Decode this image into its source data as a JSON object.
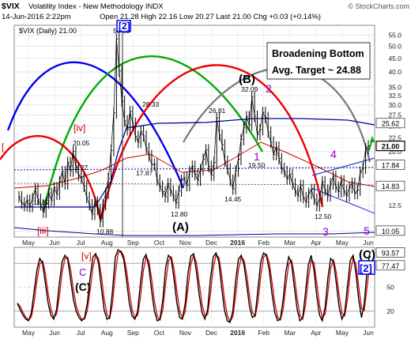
{
  "header": {
    "symbol": "$VIX",
    "name": "Volatility Index - New Methodology INDX",
    "credit": "© StockCharts.com",
    "date": "14-Jun-2016 2:22pm",
    "stats": "Open 21.28  High 22.16  Low 20.27  Last 21.00  Chg +0.03 (+0.14%)",
    "legend": "$VIX (Daily) 21.00"
  },
  "colors": {
    "price": "#000000",
    "up_arrow": "#00aa00",
    "cycle_blue": "#0000ee",
    "cycle_green": "#00aa00",
    "cycle_red": "#ee0000",
    "cycle_gray": "#777777",
    "wave_purple": "#9900cc",
    "wave_red": "#cc0000",
    "ma_blue": "#000099",
    "ma_red": "#cc0000",
    "channel": "#3344cc",
    "stoch_red": "#dd0000"
  },
  "annotations": {
    "title_box": [
      "Broadening Bottom",
      "Avg. Target ~ 24.88"
    ],
    "wave_B": "(B)",
    "wave_A": "(A)",
    "wave_C_top": "(C)",
    "wave_C_low": "(C)",
    "wave_2_box": "2",
    "purple_2": "2",
    "purple_1": "1",
    "purple_3": "3",
    "purple_4": "4",
    "purple_5": "5",
    "purple_C": "C",
    "red_iv": "[iv]",
    "red_iii": "[iii]",
    "red_v": "[v]",
    "marker_2": "[2]"
  },
  "price_labels": {
    "p1": "11.82",
    "p2": "20.05",
    "p3": "16.27",
    "p4": "10.88",
    "p5": "53.29",
    "p6": "28.33",
    "p7": "17.87",
    "p8": "12.80",
    "p9": "26.81",
    "p10": "14.45",
    "p11": "32.09",
    "p12": "19.50",
    "p13": "12.50"
  },
  "right_badges": [
    {
      "label": "25.62",
      "value": 25.62,
      "style": "white"
    },
    {
      "label": "21.00",
      "value": 21.0,
      "style": "bold"
    },
    {
      "label": "17.84",
      "value": 17.84,
      "style": "white"
    },
    {
      "label": "14.83",
      "value": 14.83,
      "style": "white"
    },
    {
      "label": "10.05",
      "value": 10.05,
      "style": "white"
    }
  ],
  "osc_badges": [
    {
      "label": "93.57"
    },
    {
      "label": "77.47"
    }
  ],
  "chart_data": [
    {
      "type": "line",
      "title": "$VIX (Daily) 21.00",
      "xlabel": "",
      "ylabel": "",
      "log_scale": true,
      "ylim": [
        9.5,
        60
      ],
      "yticks": [
        10.0,
        12.5,
        15.0,
        17.5,
        20.0,
        22.5,
        25.0,
        27.5,
        30.0,
        32.5,
        35.0,
        40.0,
        45.0,
        50.0,
        55.0
      ],
      "ytick_labels": [
        "10.0",
        "12.5",
        "15.0",
        "17.5",
        "20.0",
        "22.5",
        "25.0",
        "27.5",
        "30.0",
        "32.5",
        "35.0",
        "40.0",
        "45.0",
        "50.0",
        "55.0"
      ],
      "xtick_labels": [
        "May",
        "Jun",
        "Jul",
        "Aug",
        "Sep",
        "Oct",
        "Nov",
        "Dec",
        "2016",
        "Feb",
        "Mar",
        "Apr",
        "May",
        "Jun"
      ],
      "grid": true,
      "series": [
        {
          "values": [
            13.5,
            12.8,
            12.5,
            13.1,
            12.4,
            13.3,
            14.5,
            13.2,
            12.6,
            11.82,
            12.8,
            13.9,
            13.1,
            14.6,
            13.8,
            15.4,
            16.8,
            15.1,
            18.2,
            16.9,
            20.05,
            17.4,
            16.27,
            15.9,
            14.8,
            13.4,
            12.6,
            11.6,
            12.9,
            12.1,
            10.88,
            12.6,
            13.9,
            15.8,
            20.2,
            28.0,
            53.29,
            40.4,
            31.0,
            26.1,
            24.2,
            28.33,
            25.6,
            22.8,
            21.7,
            23.8,
            22.9,
            20.6,
            19.3,
            17.87,
            17.9,
            15.6,
            14.8,
            14.1,
            13.5,
            15.1,
            14.2,
            13.6,
            12.8,
            14.2,
            15.6,
            15.9,
            14.9,
            16.8,
            17.6,
            16.4,
            15.6,
            17.1,
            18.7,
            20.3,
            17.6,
            16.3,
            18.2,
            26.81,
            23.1,
            21.2,
            18.4,
            17.2,
            15.6,
            14.45,
            16.9,
            18.7,
            22.2,
            24.6,
            27.1,
            25.2,
            32.09,
            27.2,
            23.2,
            24.2,
            28.1,
            26.9,
            23.7,
            21.7,
            19.5,
            20.8,
            18.8,
            17.3,
            16.8,
            15.8,
            16.4,
            15.1,
            14.2,
            13.6,
            14.9,
            13.4,
            12.9,
            13.9,
            14.4,
            13.2,
            12.5,
            13.3,
            15.4,
            14.3,
            13.6,
            15.1,
            16.1,
            14.7,
            14.1,
            15.5,
            14.2,
            13.6,
            14.6,
            15.2,
            13.9,
            14.3,
            16.7,
            17.3,
            20.5,
            21.0
          ]
        }
      ]
    },
    {
      "type": "line",
      "title": "",
      "xlabel": "",
      "ylabel": "",
      "ylim": [
        0,
        100
      ],
      "yticks": [
        20,
        50,
        80
      ],
      "ytick_labels": [
        "20",
        "50",
        "80"
      ],
      "xtick_labels": [
        "May",
        "Jun",
        "Jul",
        "Aug",
        "Sep",
        "Oct",
        "Nov",
        "Dec",
        "2016",
        "Feb",
        "Mar",
        "Apr",
        "May",
        "Jun"
      ],
      "grid": true,
      "series": [
        {
          "values": [
            30,
            22,
            15,
            10,
            8,
            18,
            45,
            72,
            86,
            80,
            55,
            30,
            15,
            10,
            22,
            55,
            82,
            90,
            85,
            60,
            35,
            20,
            12,
            8,
            12,
            30,
            62,
            88,
            92,
            80,
            50,
            22,
            10,
            12,
            45,
            88,
            97,
            94,
            85,
            60,
            30,
            14,
            10,
            20,
            55,
            85,
            91,
            75,
            45,
            20,
            8,
            10,
            35,
            75,
            90,
            86,
            60,
            30,
            12,
            10,
            30,
            68,
            89,
            92,
            70,
            40,
            18,
            10,
            22,
            60,
            88,
            93,
            82,
            50,
            22,
            8,
            6,
            20,
            58,
            85,
            90,
            78,
            52,
            25,
            12,
            15,
            48,
            82,
            93,
            90,
            72,
            42,
            18,
            8,
            10,
            35,
            70,
            88,
            80,
            50,
            22,
            8,
            12,
            44,
            78,
            90,
            72,
            40,
            15,
            8,
            25,
            62,
            86,
            82,
            55,
            25,
            10,
            18,
            52,
            84,
            90,
            68,
            35,
            12,
            30,
            72,
            93.57
          ]
        }
      ]
    }
  ]
}
